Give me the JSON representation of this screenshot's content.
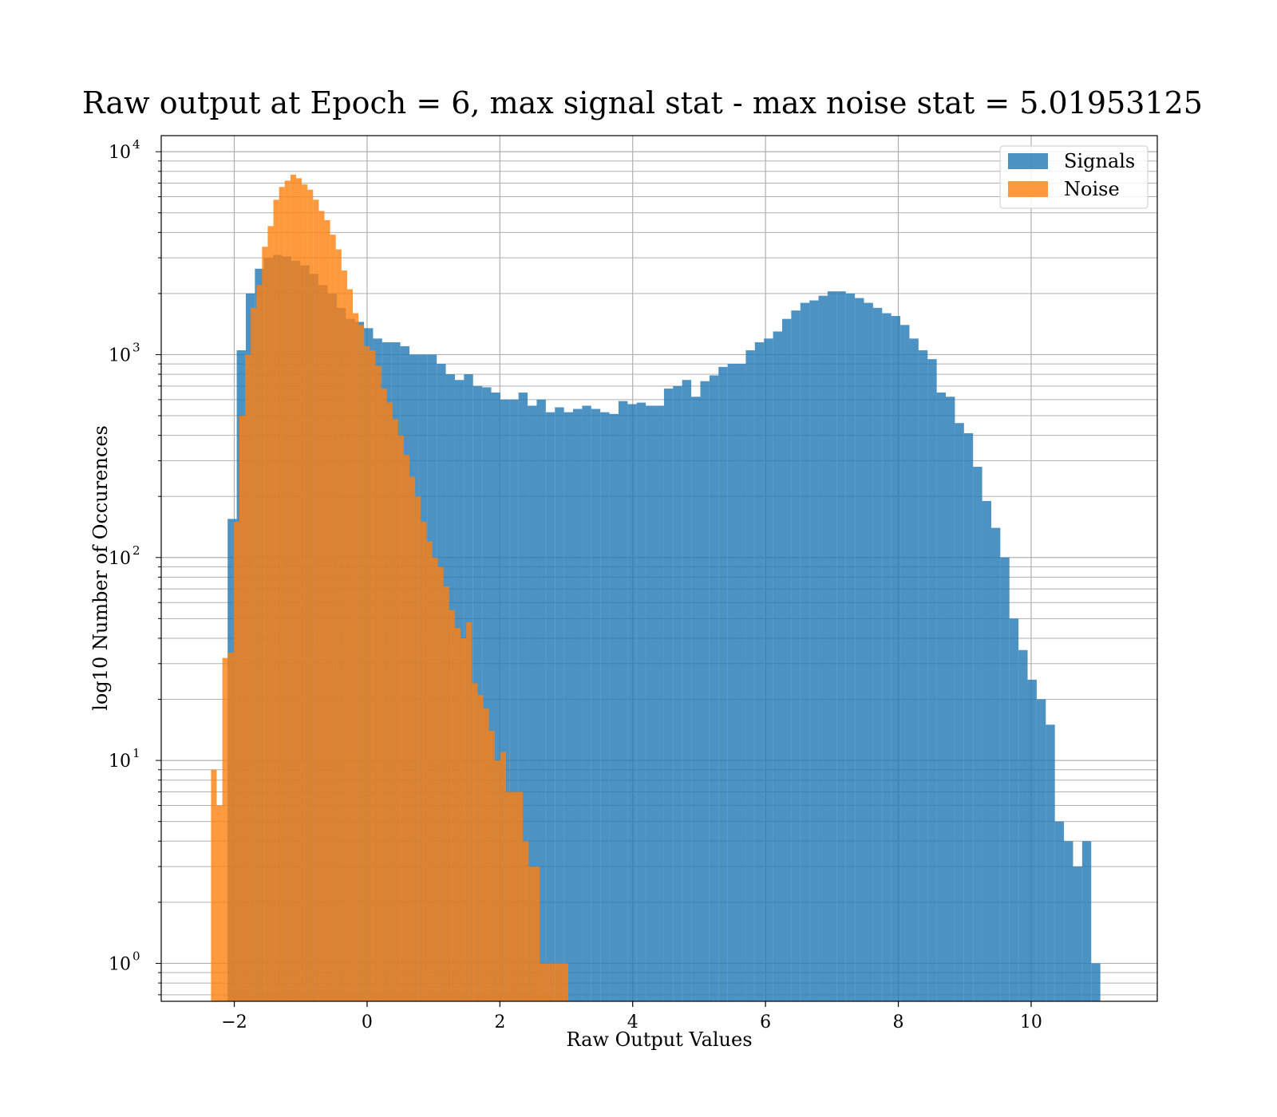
{
  "chart_data": {
    "type": "histogram",
    "title": "Raw output at Epoch = 6, max signal stat - max noise stat = 5.01953125",
    "xlabel": "Raw Output Values",
    "ylabel": "log10 Number of Occurences",
    "xlim": [
      -3.1,
      11.9
    ],
    "ylim": [
      0.65,
      12000
    ],
    "yscale": "log",
    "grid": true,
    "legend_placement": "upper right",
    "xticks": [
      -2,
      0,
      2,
      4,
      6,
      8,
      10
    ],
    "xtick_labels": [
      "−2",
      "0",
      "2",
      "4",
      "6",
      "8",
      "10"
    ],
    "yticks": [
      1,
      10,
      100,
      1000,
      10000
    ],
    "ytick_labels": [
      {
        "base": "10",
        "exp": "0"
      },
      {
        "base": "10",
        "exp": "1"
      },
      {
        "base": "10",
        "exp": "2"
      },
      {
        "base": "10",
        "exp": "3"
      },
      {
        "base": "10",
        "exp": "4"
      }
    ],
    "colors": {
      "signals": "#1f77b4",
      "noise": "#ff7f0e"
    },
    "series": [
      {
        "name": "Signals",
        "bin_start": -2.1,
        "bin_width": 0.1369,
        "counts": [
          155,
          1050,
          2000,
          2650,
          3000,
          3100,
          3050,
          2900,
          2750,
          2500,
          2200,
          2000,
          1700,
          1500,
          1450,
          1350,
          1200,
          1150,
          1150,
          1100,
          1000,
          1000,
          1000,
          900,
          800,
          750,
          800,
          700,
          690,
          650,
          600,
          600,
          650,
          560,
          600,
          520,
          550,
          520,
          540,
          560,
          540,
          520,
          510,
          590,
          570,
          580,
          560,
          560,
          680,
          700,
          750,
          620,
          740,
          790,
          870,
          900,
          900,
          1050,
          1150,
          1200,
          1300,
          1500,
          1650,
          1800,
          1850,
          1950,
          2050,
          2050,
          2000,
          1900,
          1800,
          1700,
          1600,
          1550,
          1400,
          1200,
          1050,
          950,
          650,
          620,
          460,
          410,
          280,
          190,
          140,
          100,
          50,
          35,
          25,
          20,
          15,
          5,
          4,
          3,
          4,
          1
        ]
      },
      {
        "name": "Noise",
        "bin_start": -2.35,
        "bin_width": 0.0854,
        "counts": [
          9,
          6,
          32,
          34,
          150,
          500,
          1000,
          1700,
          2200,
          3400,
          4300,
          5800,
          6700,
          7200,
          7700,
          7400,
          6900,
          6500,
          5800,
          5100,
          4600,
          3900,
          3300,
          2600,
          2100,
          1600,
          1400,
          1100,
          1050,
          880,
          680,
          580,
          480,
          400,
          320,
          250,
          200,
          150,
          120,
          100,
          90,
          72,
          55,
          45,
          40,
          48,
          24,
          21,
          18,
          14,
          10,
          11,
          7,
          7,
          7,
          4,
          3,
          3,
          1,
          1,
          1,
          1,
          1
        ]
      }
    ]
  }
}
